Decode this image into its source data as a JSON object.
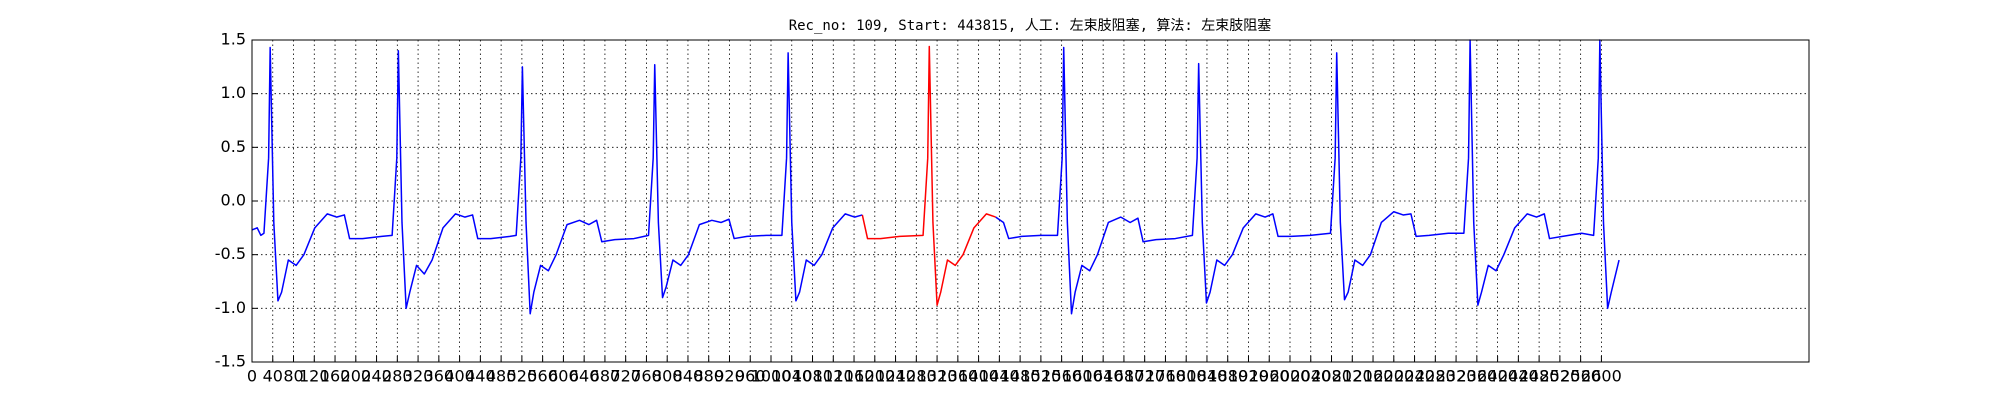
{
  "chart_data": {
    "type": "line",
    "title": "Rec_no: 109, Start: 443815, 人工: 左束肢阻塞, 算法: 左束肢阻塞",
    "xlim": [
      0,
      3000
    ],
    "ylim": [
      -1.5,
      1.5
    ],
    "xticks": [
      0,
      40,
      80,
      120,
      160,
      200,
      240,
      280,
      320,
      360,
      400,
      440,
      480,
      520,
      560,
      600,
      640,
      680,
      720,
      760,
      800,
      840,
      880,
      920,
      960,
      1000,
      1040,
      1080,
      1120,
      1160,
      1200,
      1240,
      1280,
      1320,
      1360,
      1400,
      1440,
      1480,
      1520,
      1560,
      1600,
      1640,
      1680,
      1720,
      1760,
      1800,
      1840,
      1880,
      1920,
      1960,
      2000,
      2040,
      2080,
      2120,
      2160,
      2200,
      2240,
      2280,
      2320,
      2360,
      2400,
      2440,
      2480,
      2520,
      2560,
      2600
    ],
    "yticks": [
      -1.5,
      {
        "value": -1,
        "label": "-1.0"
      },
      -0.5,
      {
        "value": 0,
        "label": "0.0"
      },
      0.5,
      {
        "value": 1,
        "label": "1.0"
      },
      1.5
    ],
    "grid": true,
    "series": [
      {
        "color": "#0000ff",
        "x": [
          0,
          10,
          17,
          23,
          32,
          35,
          42,
          50,
          57,
          70,
          85,
          100,
          121,
          145,
          163,
          178,
          188,
          213,
          250,
          270,
          279,
          282,
          289,
          297,
          304,
          317,
          332,
          347,
          368,
          392,
          410,
          425,
          435,
          460,
          497,
          509,
          518,
          521,
          528,
          536,
          543,
          556,
          571,
          586,
          607,
          631,
          649,
          664,
          674,
          699,
          736,
          764,
          773,
          776,
          783,
          791,
          798,
          811,
          826,
          841,
          862,
          886,
          904,
          919,
          929,
          954,
          991,
          1021,
          1030,
          1033,
          1040,
          1048,
          1055,
          1068,
          1083,
          1098,
          1119,
          1143,
          1161,
          1176,
          1186,
          1211,
          1248,
          1293,
          1302,
          1305,
          1312,
          1320,
          1327,
          1340,
          1355,
          1370,
          1391,
          1415,
          1433,
          1448,
          1458,
          1483,
          1520,
          1552,
          1561,
          1564,
          1571,
          1579,
          1586,
          1599,
          1614,
          1629,
          1650,
          1674,
          1692,
          1707,
          1717,
          1742,
          1779,
          1812,
          1821,
          1824,
          1831,
          1839,
          1846,
          1859,
          1874,
          1889,
          1910,
          1934,
          1952,
          1967,
          1977,
          2002,
          2039,
          2078,
          2087,
          2090,
          2097,
          2105,
          2112,
          2125,
          2140,
          2155,
          2176,
          2200,
          2218,
          2233,
          2243,
          2268,
          2305,
          2335,
          2344,
          2347,
          2354,
          2362,
          2369,
          2382,
          2397,
          2412,
          2433,
          2457,
          2475,
          2490,
          2500,
          2525,
          2562,
          2585,
          2594,
          2597,
          2604,
          2612,
          2619,
          2634
        ],
        "values": [
          -0.27,
          -0.25,
          -0.32,
          -0.3,
          0.4,
          1.43,
          -0.2,
          -0.93,
          -0.85,
          -0.55,
          -0.6,
          -0.5,
          -0.25,
          -0.12,
          -0.15,
          -0.13,
          -0.35,
          -0.35,
          -0.33,
          -0.32,
          0.4,
          1.4,
          -0.2,
          -1.0,
          -0.85,
          -0.6,
          -0.68,
          -0.55,
          -0.25,
          -0.12,
          -0.15,
          -0.13,
          -0.35,
          -0.35,
          -0.33,
          -0.32,
          0.4,
          1.25,
          -0.2,
          -1.05,
          -0.85,
          -0.6,
          -0.65,
          -0.5,
          -0.22,
          -0.18,
          -0.22,
          -0.18,
          -0.38,
          -0.36,
          -0.35,
          -0.32,
          0.4,
          1.27,
          -0.2,
          -0.9,
          -0.8,
          -0.55,
          -0.6,
          -0.5,
          -0.22,
          -0.18,
          -0.2,
          -0.17,
          -0.35,
          -0.33,
          -0.32,
          -0.32,
          0.4,
          1.38,
          -0.2,
          -0.93,
          -0.85,
          -0.55,
          -0.6,
          -0.5,
          -0.25,
          -0.12,
          -0.15,
          -0.13,
          null,
          null,
          null,
          null,
          null,
          null,
          null,
          null,
          null,
          null,
          null,
          null,
          null,
          null,
          -0.15,
          -0.2,
          -0.35,
          -0.33,
          -0.32,
          -0.32,
          0.4,
          1.43,
          -0.2,
          -1.05,
          -0.85,
          -0.6,
          -0.65,
          -0.5,
          -0.2,
          -0.15,
          -0.2,
          -0.16,
          -0.38,
          -0.36,
          -0.35,
          -0.32,
          0.4,
          1.28,
          -0.2,
          -0.95,
          -0.85,
          -0.55,
          -0.6,
          -0.5,
          -0.25,
          -0.12,
          -0.15,
          -0.12,
          -0.33,
          -0.33,
          -0.32,
          -0.3,
          0.4,
          1.38,
          -0.2,
          -0.92,
          -0.85,
          -0.55,
          -0.6,
          -0.5,
          -0.2,
          -0.1,
          -0.13,
          -0.12,
          -0.33,
          -0.32,
          -0.3,
          -0.3,
          0.4,
          1.5,
          -0.2,
          -0.97,
          -0.85,
          -0.6,
          -0.65,
          -0.5,
          -0.25,
          -0.12,
          -0.15,
          -0.12,
          -0.35,
          -0.33,
          -0.3,
          -0.32,
          0.4,
          1.5,
          -0.2,
          -1.0,
          -0.85,
          -0.55
        ]
      },
      {
        "color": "#ff0000",
        "x": [
          1176,
          1186,
          1211,
          1248,
          1293,
          1302,
          1305,
          1312,
          1320,
          1327,
          1340,
          1355,
          1370,
          1391,
          1415,
          1433
        ],
        "values": [
          -0.13,
          -0.35,
          -0.35,
          -0.33,
          -0.32,
          0.4,
          1.44,
          -0.2,
          -0.97,
          -0.85,
          -0.55,
          -0.6,
          -0.5,
          -0.25,
          -0.12,
          -0.15
        ]
      }
    ]
  }
}
